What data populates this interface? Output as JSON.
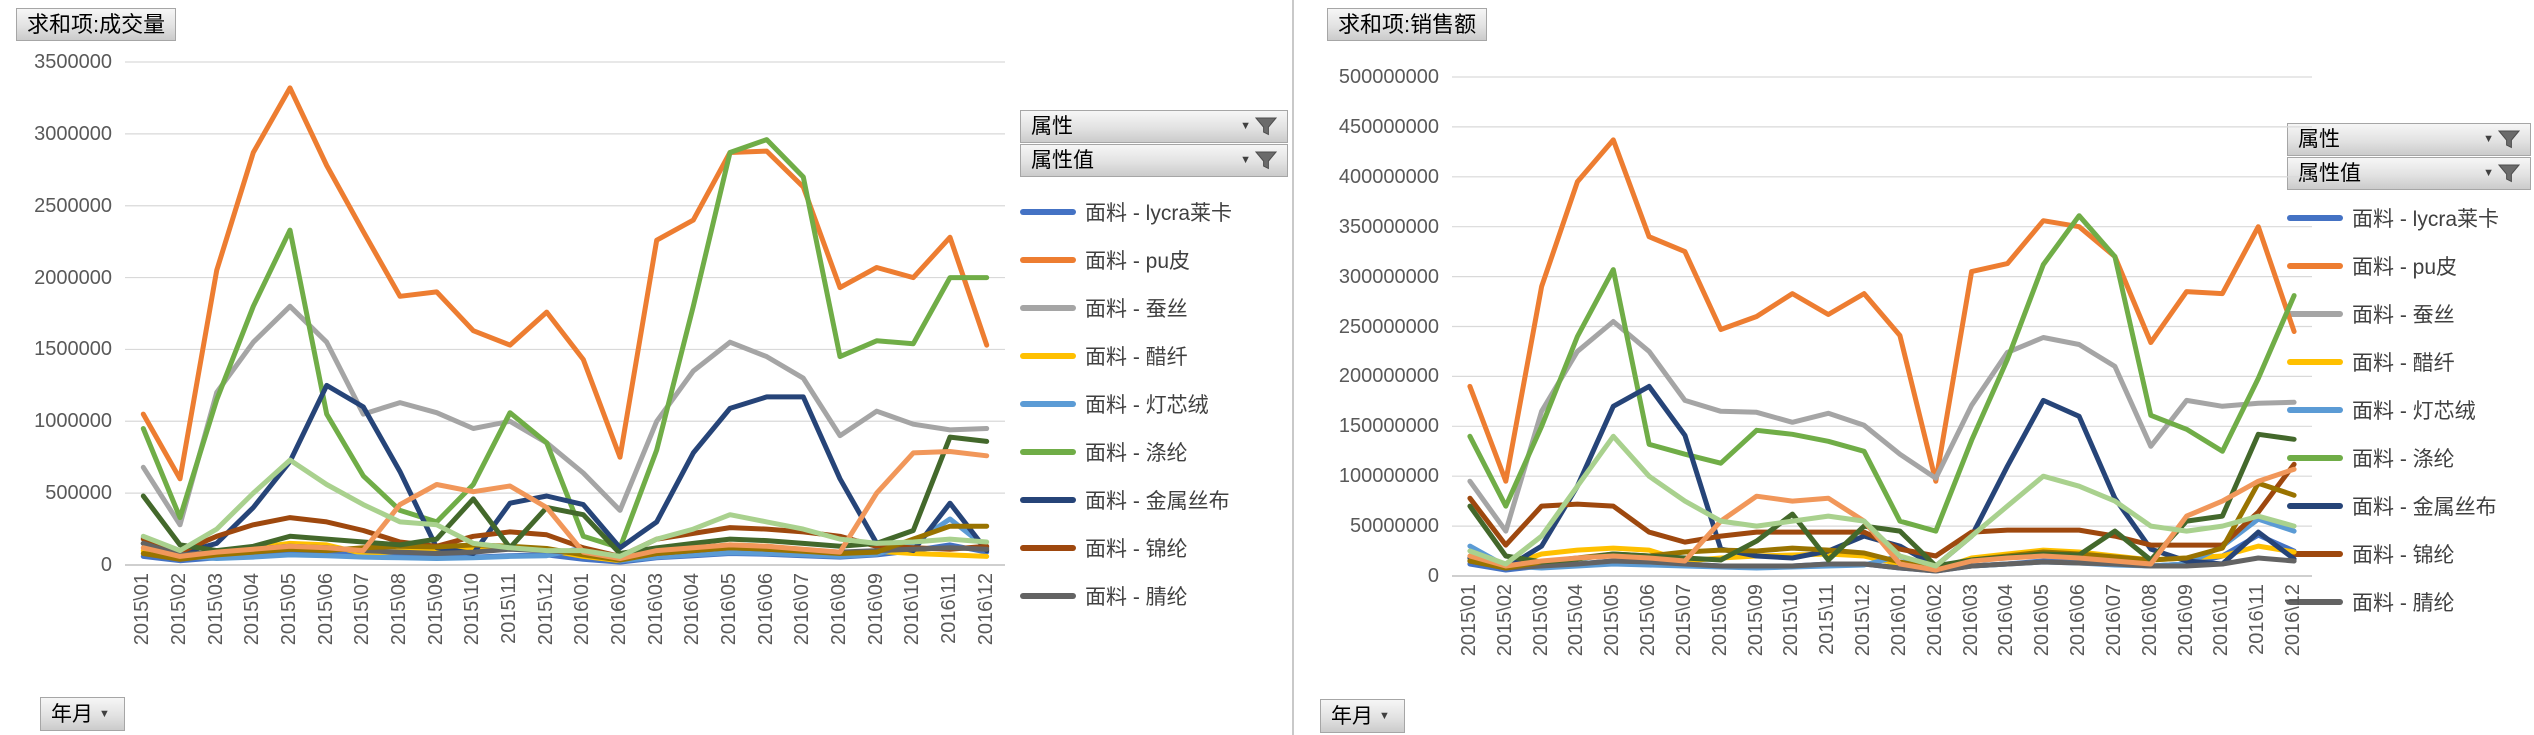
{
  "ui": {
    "filter_buttons": [
      "属性",
      "属性值"
    ],
    "axis_field_button": "年月",
    "icons": {
      "filter": "funnel-icon",
      "dropdown": "caret-down-icon"
    },
    "colors": {
      "gridline": "#D9D9D9",
      "axis_line": "#BFBFBF",
      "axis_text": "#595959",
      "legend_text": "#404040"
    }
  },
  "chart_data": [
    {
      "type": "line",
      "title": "求和项:成交量",
      "grid": true,
      "legend_position": "right",
      "legend_visible_entries": 9,
      "ylim": [
        0,
        3500000
      ],
      "y_step": 500000,
      "y_tick_labels": [
        "3500000",
        "3000000",
        "2500000",
        "2000000",
        "1500000",
        "1000000",
        "500000",
        "0"
      ],
      "categories": [
        "2015\\01",
        "2015\\02",
        "2015\\03",
        "2015\\04",
        "2015\\05",
        "2015\\06",
        "2015\\07",
        "2015\\08",
        "2015\\09",
        "2015\\10",
        "2015\\11",
        "2015\\12",
        "2016\\01",
        "2016\\02",
        "2016\\03",
        "2016\\04",
        "2016\\05",
        "2016\\06",
        "2016\\07",
        "2016\\08",
        "2016\\09",
        "2016\\10",
        "2016\\11",
        "2016\\12"
      ],
      "series": [
        {
          "name": "面料 - lycra莱卡",
          "color": "#4472C4",
          "values": [
            60000,
            30000,
            50000,
            70000,
            90000,
            80000,
            70000,
            60000,
            50000,
            55000,
            65000,
            70000,
            40000,
            20000,
            50000,
            65000,
            80000,
            75000,
            65000,
            55000,
            70000,
            100000,
            140000,
            90000
          ]
        },
        {
          "name": "面料 - pu皮",
          "color": "#ED7D31",
          "values": [
            1050000,
            600000,
            2050000,
            2870000,
            3320000,
            2780000,
            2320000,
            1870000,
            1900000,
            1630000,
            1530000,
            1760000,
            1430000,
            750000,
            2260000,
            2400000,
            2870000,
            2880000,
            2630000,
            1930000,
            2070000,
            2000000,
            2280000,
            1530000
          ]
        },
        {
          "name": "面料 - 蚕丝",
          "color": "#A5A5A5",
          "values": [
            680000,
            280000,
            1200000,
            1550000,
            1800000,
            1550000,
            1050000,
            1130000,
            1060000,
            950000,
            1000000,
            850000,
            640000,
            380000,
            1000000,
            1350000,
            1550000,
            1450000,
            1300000,
            900000,
            1070000,
            980000,
            940000,
            950000
          ]
        },
        {
          "name": "面料 - 醋纤",
          "color": "#FFC000",
          "values": [
            100000,
            50000,
            90000,
            120000,
            150000,
            140000,
            80000,
            95000,
            105000,
            115000,
            125000,
            105000,
            60000,
            30000,
            95000,
            115000,
            140000,
            130000,
            105000,
            85000,
            95000,
            80000,
            70000,
            60000
          ]
        },
        {
          "name": "面料 - 灯芯绒",
          "color": "#5B9BD5",
          "values": [
            190000,
            60000,
            45000,
            55000,
            70000,
            65000,
            55000,
            50000,
            45000,
            50000,
            60000,
            65000,
            120000,
            30000,
            55000,
            70000,
            85000,
            80000,
            70000,
            60000,
            75000,
            150000,
            320000,
            120000
          ]
        },
        {
          "name": "面料 - 涤纶",
          "color": "#70AD47",
          "values": [
            950000,
            330000,
            1150000,
            1800000,
            2330000,
            1050000,
            620000,
            380000,
            300000,
            560000,
            1060000,
            850000,
            200000,
            120000,
            800000,
            1800000,
            2870000,
            2960000,
            2700000,
            1450000,
            1560000,
            1540000,
            2000000,
            2000000
          ]
        },
        {
          "name": "面料 - 金属丝布",
          "color": "#264478",
          "values": [
            150000,
            80000,
            150000,
            400000,
            720000,
            1250000,
            1100000,
            650000,
            120000,
            80000,
            430000,
            480000,
            420000,
            120000,
            300000,
            780000,
            1090000,
            1170000,
            1170000,
            600000,
            150000,
            100000,
            430000,
            100000
          ]
        },
        {
          "name": "面料 - 锦纶",
          "color": "#9E480E",
          "values": [
            180000,
            90000,
            200000,
            280000,
            330000,
            300000,
            240000,
            160000,
            130000,
            200000,
            230000,
            210000,
            120000,
            60000,
            180000,
            220000,
            260000,
            250000,
            230000,
            200000,
            130000,
            120000,
            110000,
            130000
          ]
        },
        {
          "name": "面料 - 腈纶",
          "color": "#636363",
          "values": [
            150000,
            70000,
            90000,
            110000,
            130000,
            120000,
            100000,
            90000,
            80000,
            90000,
            110000,
            100000,
            80000,
            40000,
            80000,
            100000,
            120000,
            110000,
            100000,
            90000,
            100000,
            110000,
            120000,
            110000
          ]
        },
        {
          "name": "",
          "color": "#997300",
          "values": [
            80000,
            40000,
            70000,
            90000,
            110000,
            100000,
            120000,
            130000,
            125000,
            140000,
            130000,
            115000,
            70000,
            35000,
            80000,
            100000,
            120000,
            110000,
            95000,
            80000,
            90000,
            180000,
            270000,
            270000
          ]
        },
        {
          "name": "",
          "color": "#43682B",
          "values": [
            480000,
            140000,
            100000,
            130000,
            200000,
            180000,
            160000,
            140000,
            180000,
            460000,
            120000,
            400000,
            350000,
            80000,
            120000,
            150000,
            180000,
            170000,
            150000,
            130000,
            150000,
            240000,
            890000,
            860000
          ]
        },
        {
          "name": "",
          "color": "#F1975A",
          "values": [
            120000,
            60000,
            90000,
            110000,
            130000,
            120000,
            100000,
            420000,
            560000,
            510000,
            550000,
            400000,
            90000,
            45000,
            100000,
            120000,
            140000,
            130000,
            110000,
            90000,
            500000,
            780000,
            790000,
            760000
          ]
        },
        {
          "name": "",
          "color": "#A9D18E",
          "values": [
            200000,
            100000,
            250000,
            500000,
            730000,
            560000,
            420000,
            300000,
            280000,
            150000,
            120000,
            100000,
            100000,
            60000,
            180000,
            250000,
            350000,
            300000,
            250000,
            180000,
            150000,
            160000,
            180000,
            160000
          ]
        }
      ]
    },
    {
      "type": "line",
      "title": "求和项:销售额",
      "grid": true,
      "legend_position": "right",
      "legend_visible_entries": 9,
      "ylim": [
        0,
        500000000
      ],
      "y_step": 50000000,
      "y_tick_labels": [
        "500000000",
        "450000000",
        "400000000",
        "350000000",
        "300000000",
        "250000000",
        "200000000",
        "150000000",
        "100000000",
        "50000000",
        "0"
      ],
      "categories": [
        "2015\\01",
        "2015\\02",
        "2015\\03",
        "2015\\04",
        "2015\\05",
        "2015\\06",
        "2015\\07",
        "2015\\08",
        "2015\\09",
        "2015\\10",
        "2015\\11",
        "2015\\12",
        "2016\\01",
        "2016\\02",
        "2016\\03",
        "2016\\04",
        "2016\\05",
        "2016\\06",
        "2016\\07",
        "2016\\08",
        "2016\\09",
        "2016\\10",
        "2016\\11",
        "2016\\12"
      ],
      "series": [
        {
          "name": "面料 - lycra莱卡",
          "color": "#4472C4",
          "values": [
            12000000,
            6000000,
            10000000,
            12000000,
            15000000,
            14000000,
            12000000,
            10000000,
            10000000,
            10000000,
            12000000,
            12000000,
            8000000,
            5000000,
            10000000,
            12000000,
            15000000,
            14000000,
            12000000,
            10000000,
            12000000,
            20000000,
            41000000,
            25000000
          ]
        },
        {
          "name": "面料 - pu皮",
          "color": "#ED7D31",
          "values": [
            190000000,
            95000000,
            290000000,
            395000000,
            437000000,
            340000000,
            325000000,
            247000000,
            260000000,
            283000000,
            262000000,
            283000000,
            241000000,
            95000000,
            305000000,
            313000000,
            356000000,
            350000000,
            320000000,
            234000000,
            285000000,
            283000000,
            350000000,
            245000000
          ]
        },
        {
          "name": "面料 - 蚕丝",
          "color": "#A5A5A5",
          "values": [
            95000000,
            45000000,
            165000000,
            225000000,
            255000000,
            225000000,
            176000000,
            165000000,
            164000000,
            154000000,
            163000000,
            151000000,
            122000000,
            98000000,
            171000000,
            224000000,
            239000000,
            232000000,
            210000000,
            130000000,
            176000000,
            170000000,
            173000000,
            174000000
          ]
        },
        {
          "name": "面料 - 醋纤",
          "color": "#FFC000",
          "values": [
            18000000,
            10000000,
            22000000,
            26000000,
            28000000,
            26000000,
            15000000,
            18000000,
            20000000,
            21000000,
            22000000,
            20000000,
            12000000,
            6000000,
            18000000,
            22000000,
            26000000,
            24000000,
            20000000,
            16000000,
            18000000,
            20000000,
            30000000,
            24000000
          ]
        },
        {
          "name": "面料 - 灯芯绒",
          "color": "#5B9BD5",
          "values": [
            30000000,
            10000000,
            8000000,
            10000000,
            12000000,
            11000000,
            10000000,
            9000000,
            8000000,
            9000000,
            10000000,
            11000000,
            20000000,
            6000000,
            10000000,
            12000000,
            14000000,
            13000000,
            11000000,
            10000000,
            12000000,
            30000000,
            57000000,
            45000000
          ]
        },
        {
          "name": "面料 - 涤纶",
          "color": "#70AD47",
          "values": [
            140000000,
            70000000,
            150000000,
            240000000,
            307000000,
            132000000,
            122000000,
            113000000,
            146000000,
            142000000,
            135000000,
            125000000,
            55000000,
            45000000,
            136000000,
            217000000,
            312000000,
            361000000,
            320000000,
            161000000,
            147000000,
            125000000,
            198000000,
            281000000
          ]
        },
        {
          "name": "面料 - 金属丝布",
          "color": "#264478",
          "values": [
            18000000,
            8000000,
            30000000,
            90000000,
            170000000,
            190000000,
            141000000,
            27000000,
            20000000,
            18000000,
            25000000,
            40000000,
            30000000,
            10000000,
            40000000,
            110000000,
            176000000,
            160000000,
            78000000,
            27000000,
            15000000,
            12000000,
            44000000,
            17000000
          ]
        },
        {
          "name": "面料 - 锦纶",
          "color": "#9E480E",
          "values": [
            78000000,
            31000000,
            70000000,
            72000000,
            70000000,
            44000000,
            34000000,
            40000000,
            44000000,
            44000000,
            44000000,
            44000000,
            27000000,
            20000000,
            44000000,
            46000000,
            46000000,
            46000000,
            40000000,
            31000000,
            31000000,
            31000000,
            64000000,
            112000000
          ]
        },
        {
          "name": "面料 - 腈纶",
          "color": "#636363",
          "values": [
            15000000,
            8000000,
            10000000,
            12000000,
            15000000,
            14000000,
            12000000,
            10000000,
            10000000,
            10000000,
            12000000,
            12000000,
            8000000,
            5000000,
            10000000,
            12000000,
            14000000,
            13000000,
            12000000,
            10000000,
            10000000,
            12000000,
            18000000,
            15000000
          ]
        },
        {
          "name": "",
          "color": "#997300",
          "values": [
            15000000,
            8000000,
            14000000,
            18000000,
            22000000,
            20000000,
            24000000,
            26000000,
            25000000,
            28000000,
            26000000,
            23000000,
            14000000,
            7000000,
            16000000,
            20000000,
            24000000,
            22000000,
            19000000,
            16000000,
            18000000,
            28000000,
            93000000,
            81000000
          ]
        },
        {
          "name": "",
          "color": "#43682B",
          "values": [
            70000000,
            20000000,
            14000000,
            17000000,
            22000000,
            20000000,
            18000000,
            16000000,
            35000000,
            62000000,
            16000000,
            50000000,
            45000000,
            10000000,
            16000000,
            19000000,
            22000000,
            21000000,
            45000000,
            16000000,
            55000000,
            60000000,
            142000000,
            137000000
          ]
        },
        {
          "name": "",
          "color": "#F1975A",
          "values": [
            20000000,
            10000000,
            15000000,
            18000000,
            20000000,
            18000000,
            15000000,
            55000000,
            80000000,
            75000000,
            78000000,
            55000000,
            12000000,
            6000000,
            15000000,
            18000000,
            20000000,
            18000000,
            15000000,
            12000000,
            60000000,
            75000000,
            95000000,
            107000000
          ]
        },
        {
          "name": "",
          "color": "#A9D18E",
          "values": [
            25000000,
            12000000,
            40000000,
            90000000,
            140000000,
            100000000,
            75000000,
            55000000,
            50000000,
            55000000,
            60000000,
            55000000,
            20000000,
            10000000,
            40000000,
            70000000,
            100000000,
            90000000,
            75000000,
            50000000,
            45000000,
            50000000,
            60000000,
            50000000
          ]
        }
      ]
    }
  ]
}
